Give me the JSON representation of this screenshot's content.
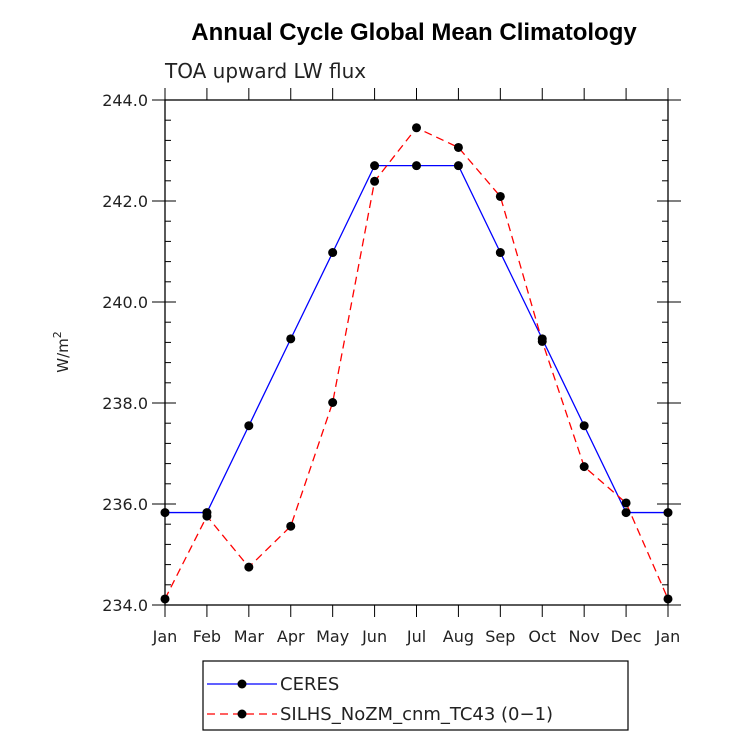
{
  "chart_data": {
    "type": "line",
    "title": "Annual Cycle Global Mean Climatology",
    "subtitle": "TOA upward LW flux",
    "xlabel": "",
    "ylabel_base": "W/m",
    "ylabel_sup": "2",
    "categories": [
      "Jan",
      "Feb",
      "Mar",
      "Apr",
      "May",
      "Jun",
      "Jul",
      "Aug",
      "Sep",
      "Oct",
      "Nov",
      "Dec",
      "Jan"
    ],
    "ylim": [
      234.0,
      244.0
    ],
    "yticks": [
      "234.0",
      "236.0",
      "238.0",
      "240.0",
      "242.0",
      "244.0"
    ],
    "grid": false,
    "legend_position": "bottom-center",
    "series": [
      {
        "name": "CERES",
        "color": "#0000ff",
        "dash": "solid",
        "values": [
          235.83,
          235.83,
          237.55,
          239.27,
          240.98,
          242.7,
          242.7,
          242.7,
          240.98,
          239.27,
          237.55,
          235.83,
          235.83
        ]
      },
      {
        "name": "SILHS_NoZM_cnm_TC43 (0−1)",
        "color": "#ff0000",
        "dash": "dashed",
        "values": [
          234.12,
          235.76,
          234.75,
          235.56,
          238.01,
          242.39,
          243.45,
          243.06,
          242.09,
          239.22,
          236.74,
          236.02,
          234.12
        ]
      }
    ]
  }
}
